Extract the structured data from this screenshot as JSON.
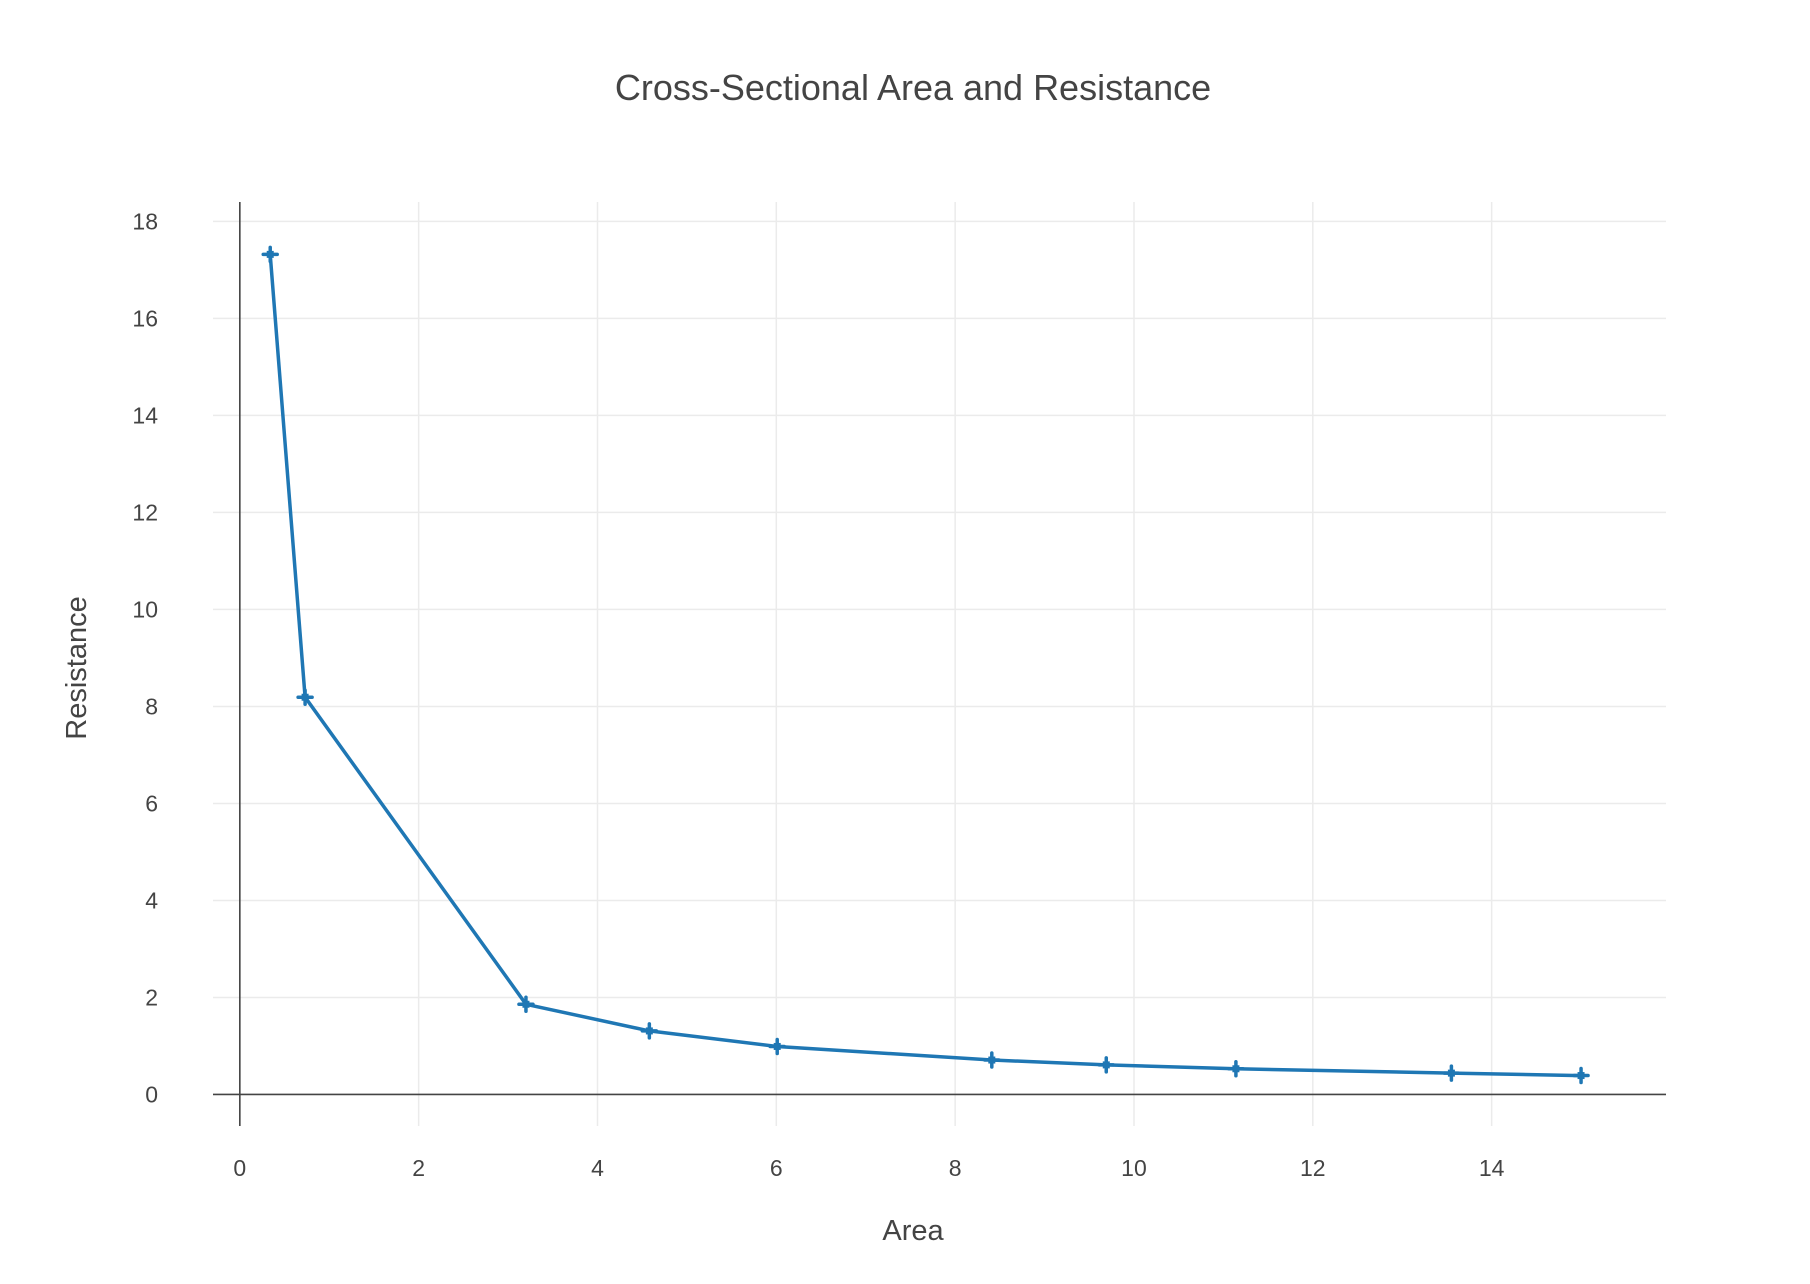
{
  "chart_data": {
    "type": "line",
    "title": "Cross-Sectional Area and Resistance",
    "xlabel": "Area",
    "ylabel": "Resistance",
    "xlim": [
      -0.3,
      15.95
    ],
    "ylim": [
      -0.65,
      18.4
    ],
    "x_ticks": [
      0,
      2,
      4,
      6,
      8,
      10,
      12,
      14
    ],
    "y_ticks": [
      0,
      2,
      4,
      6,
      8,
      10,
      12,
      14,
      16,
      18
    ],
    "grid": true,
    "legend": "none",
    "series": [
      {
        "name": "Resistance",
        "color": "#1f77b4",
        "marker": "cross",
        "x": [
          0.34,
          0.73,
          3.2,
          4.58,
          6.01,
          8.41,
          9.69,
          11.14,
          13.55,
          15.0
        ],
        "y": [
          17.32,
          8.19,
          1.86,
          1.31,
          0.99,
          0.71,
          0.61,
          0.53,
          0.44,
          0.39
        ]
      }
    ]
  }
}
